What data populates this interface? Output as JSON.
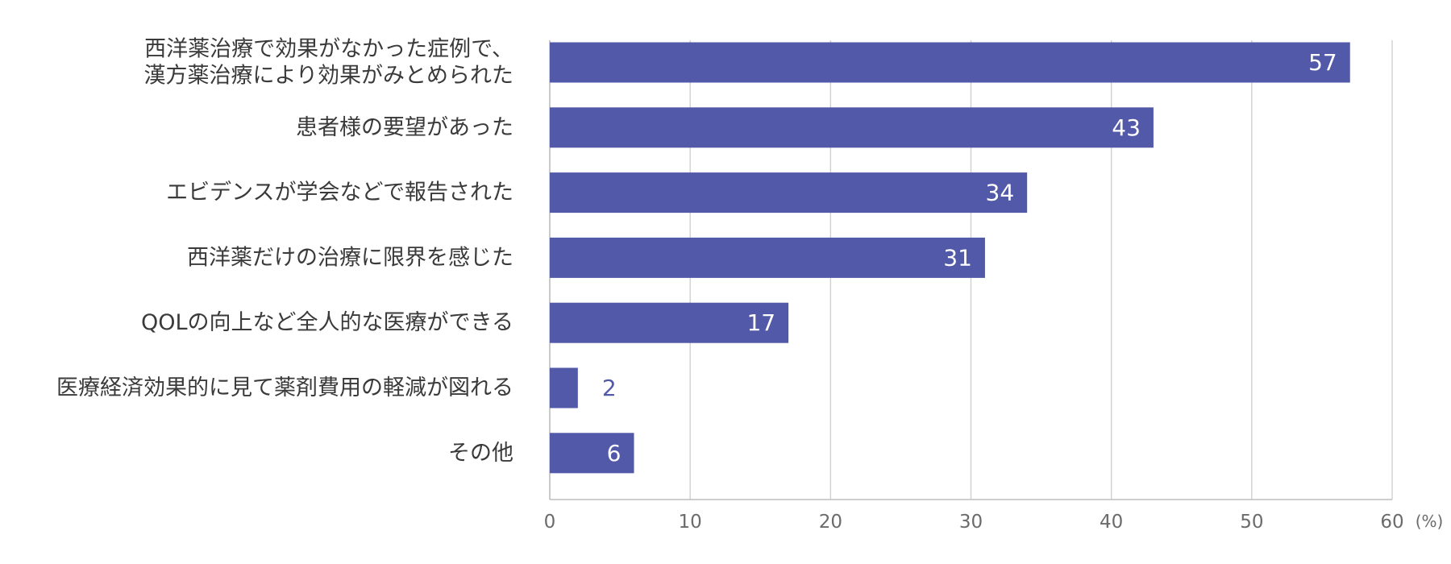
{
  "chart_data": {
    "type": "bar",
    "orientation": "horizontal",
    "categories": [
      [
        "西洋薬治療で効果がなかった症例で、",
        "漢方薬治療により効果がみとめられた"
      ],
      [
        "患者様の要望があった"
      ],
      [
        "エビデンスが学会などで報告された"
      ],
      [
        "西洋薬だけの治療に限界を感じた"
      ],
      [
        "QOLの向上など全人的な医療ができる"
      ],
      [
        "医療経済効果的に見て薬剤費用の軽減が図れる"
      ],
      [
        "その他"
      ]
    ],
    "values": [
      57,
      43,
      34,
      31,
      17,
      2,
      6
    ],
    "xlim": [
      0,
      60
    ],
    "x_ticks": [
      0,
      10,
      20,
      30,
      40,
      50,
      60
    ],
    "x_unit": "(%)",
    "grid": "vertical",
    "legend": "none",
    "bar_color": "#5159a8",
    "label_color_inside": "#ffffff",
    "label_color_outside": "#5159a8"
  }
}
